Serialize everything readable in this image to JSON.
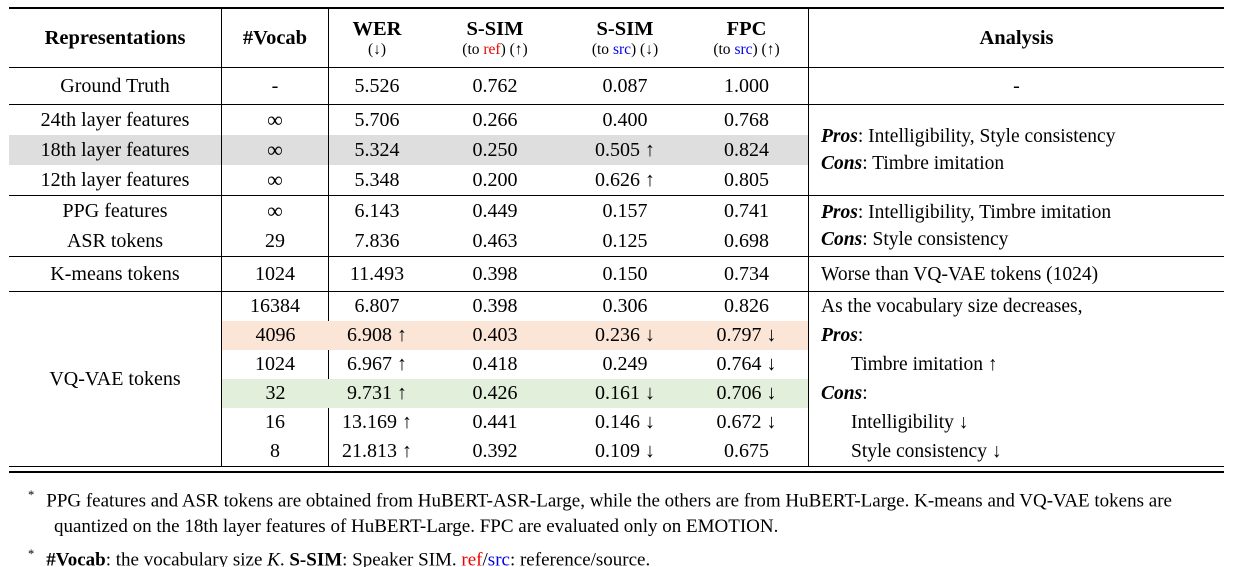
{
  "colors": {
    "red": "#ee0000",
    "blue": "#0000ee",
    "highlight_gray": "#dedede",
    "highlight_peach": "#fbe5d6",
    "highlight_green": "#e2efda"
  },
  "header": {
    "representations": "Representations",
    "vocab": "#Vocab",
    "wer": {
      "title": "WER",
      "sub": "(↓)"
    },
    "ssim_ref": {
      "title": "S-SIM",
      "pre": "(to ",
      "key": "ref",
      "post": ") (↑)"
    },
    "ssim_src": {
      "title": "S-SIM",
      "pre": "(to ",
      "key": "src",
      "post": ") (↓)"
    },
    "fpc": {
      "title": "FPC",
      "pre": "(to ",
      "key": "src",
      "post": ") (↑)"
    },
    "analysis": "Analysis"
  },
  "ground_truth": {
    "cells": [
      "Ground Truth",
      "-",
      "5.526",
      "0.762",
      "0.087",
      "1.000"
    ],
    "analysis": "-"
  },
  "layer_features": {
    "rows": [
      {
        "cells": [
          "24th layer features",
          "∞",
          "5.706",
          "0.266",
          "0.400",
          "0.768"
        ]
      },
      {
        "cells": [
          "18th layer features",
          "∞",
          "5.324",
          "0.250",
          "0.505 ↑",
          "0.824"
        ]
      },
      {
        "cells": [
          "12th layer features",
          "∞",
          "5.348",
          "0.200",
          "0.626 ↑",
          "0.805"
        ]
      }
    ],
    "analysis": {
      "pros_label": "Pros",
      "pros_text": ": Intelligibility, Style consistency",
      "cons_label": "Cons",
      "cons_text": ": Timbre imitation"
    }
  },
  "ppg_asr": {
    "rows": [
      {
        "cells": [
          "PPG features",
          "∞",
          "6.143",
          "0.449",
          "0.157",
          "0.741"
        ]
      },
      {
        "cells": [
          "ASR tokens",
          "29",
          "7.836",
          "0.463",
          "0.125",
          "0.698"
        ]
      }
    ],
    "analysis": {
      "pros_label": "Pros",
      "pros_text": ": Intelligibility, Timbre imitation",
      "cons_label": "Cons",
      "cons_text": ": Style consistency"
    }
  },
  "kmeans": {
    "cells": [
      "K-means tokens",
      "1024",
      "11.493",
      "0.398",
      "0.150",
      "0.734"
    ],
    "analysis": "Worse than VQ-VAE tokens (1024)"
  },
  "vqvae": {
    "label": "VQ-VAE tokens",
    "rows": [
      {
        "cells": [
          "16384",
          "6.807",
          "0.398",
          "0.306",
          "0.826"
        ]
      },
      {
        "cells": [
          "4096",
          "6.908 ↑",
          "0.403",
          "0.236 ↓",
          "0.797 ↓"
        ]
      },
      {
        "cells": [
          "1024",
          "6.967 ↑",
          "0.418",
          "0.249",
          "0.764 ↓"
        ]
      },
      {
        "cells": [
          "32",
          "9.731 ↑",
          "0.426",
          "0.161 ↓",
          "0.706 ↓"
        ]
      },
      {
        "cells": [
          "16",
          "13.169 ↑",
          "0.441",
          "0.146 ↓",
          "0.672 ↓"
        ]
      },
      {
        "cells": [
          "8",
          "21.813 ↑",
          "0.392",
          "0.109 ↓",
          "0.675"
        ]
      }
    ],
    "analysis": {
      "intro": "As the vocabulary size decreases,",
      "pros_label": "Pros",
      "pros_colon": ":",
      "pros_item": "Timbre imitation ↑",
      "cons_label": "Cons",
      "cons_colon": ":",
      "cons_item1": "Intelligibility ↓",
      "cons_item2": "Style consistency ↓"
    }
  },
  "footnotes": {
    "marker": "*",
    "fn1": "PPG features and ASR tokens are obtained from HuBERT-ASR-Large, while the others are from HuBERT-Large. K-means and VQ-VAE tokens are quantized on the 18th layer features of HuBERT-Large. FPC are evaluated only on EMOTION.",
    "fn2": {
      "vocab_label": "#Vocab",
      "t1": ": the vocabulary size ",
      "k": "K",
      "t2": ". ",
      "ssim_label": "S-SIM",
      "t3": ": Speaker SIM. ",
      "ref": "ref",
      "slash": "/",
      "src": "src",
      "t4": ": reference/source."
    }
  }
}
